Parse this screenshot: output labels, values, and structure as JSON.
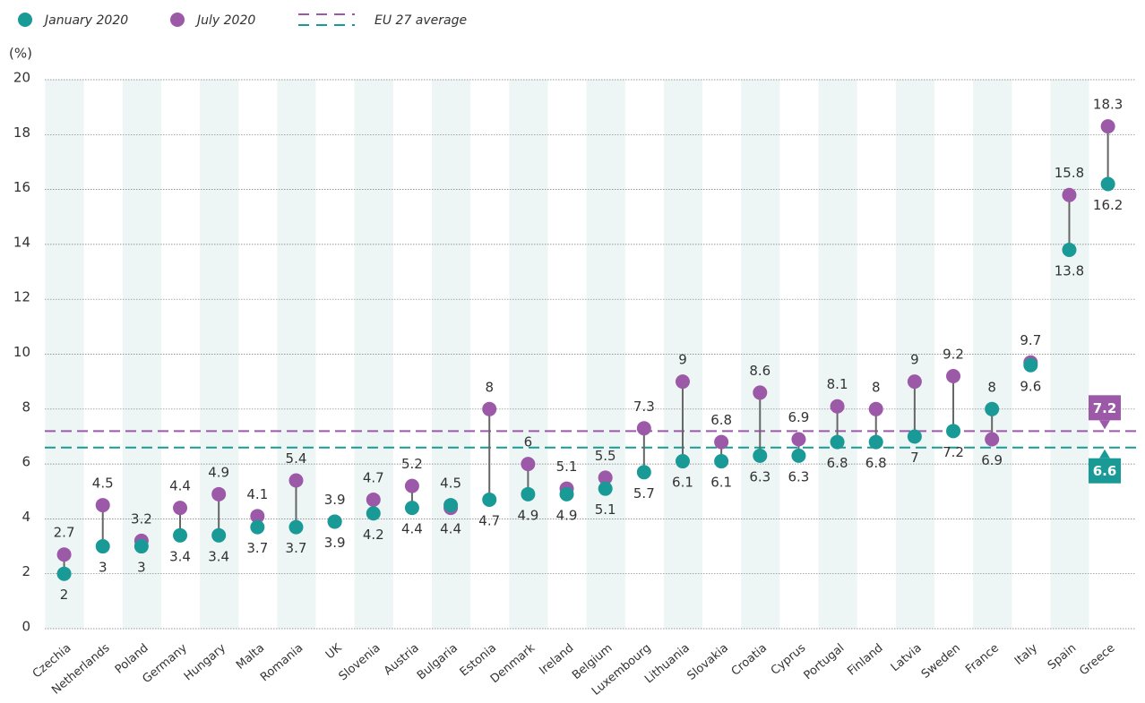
{
  "chart_data": {
    "type": "dumbbell",
    "y_label": "(%)",
    "average_label": "EU 27 average",
    "categories": [
      "Czechia",
      "Netherlands",
      "Poland",
      "Germany",
      "Hungary",
      "Malta",
      "Romania",
      "UK",
      "Slovenia",
      "Austria",
      "Bulgaria",
      "Estonia",
      "Denmark",
      "Ireland",
      "Belgium",
      "Luxembourg",
      "Lithuania",
      "Slovakia",
      "Croatia",
      "Cyprus",
      "Portugal",
      "Finland",
      "Latvia",
      "Sweden",
      "France",
      "Italy",
      "Spain",
      "Greece"
    ],
    "series": [
      {
        "name": "January 2020",
        "color": "#1a9a96",
        "average": 6.6,
        "values": [
          2,
          3,
          3,
          3.4,
          3.4,
          3.7,
          3.7,
          3.9,
          4.2,
          4.4,
          4.5,
          4.7,
          4.9,
          4.9,
          5.1,
          5.7,
          6.1,
          6.1,
          6.3,
          6.3,
          6.8,
          6.8,
          7,
          7.2,
          8,
          9.6,
          13.8,
          16.2
        ]
      },
      {
        "name": "July 2020",
        "color": "#9b59a8",
        "average": 7.2,
        "values": [
          2.7,
          4.5,
          3.2,
          4.4,
          4.9,
          4.1,
          5.4,
          3.9,
          4.7,
          5.2,
          4.4,
          8,
          6,
          5.1,
          5.5,
          7.3,
          9,
          6.8,
          8.6,
          6.9,
          8.1,
          8,
          9,
          9.2,
          6.9,
          9.7,
          15.8,
          18.3
        ]
      }
    ],
    "ylim": [
      0,
      20
    ],
    "yticks": [
      0,
      2,
      4,
      6,
      8,
      10,
      12,
      14,
      16,
      18,
      20
    ],
    "grid": true
  }
}
